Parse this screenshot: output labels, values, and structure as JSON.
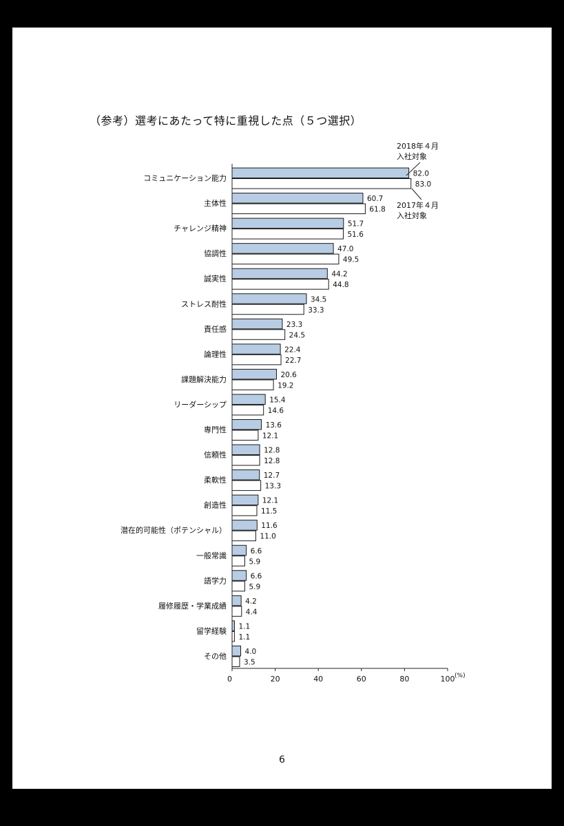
{
  "page": {
    "title": "（参考）選考にあたって特に重視した点（５つ選択）",
    "page_number": "6"
  },
  "chart_data": {
    "type": "bar",
    "orientation": "horizontal",
    "title": "（参考）選考にあたって特に重視した点（５つ選択）",
    "xlabel": "(%)",
    "xlim": [
      0,
      100
    ],
    "xticks": [
      0,
      20,
      40,
      60,
      80,
      100
    ],
    "grid": false,
    "categories": [
      "コミュニケーション能力",
      "主体性",
      "チャレンジ精神",
      "協調性",
      "誠実性",
      "ストレス耐性",
      "責任感",
      "論理性",
      "課題解決能力",
      "リーダーシップ",
      "専門性",
      "信頼性",
      "柔軟性",
      "創造性",
      "潜在的可能性（ポテンシャル）",
      "一般常識",
      "語学力",
      "履修履歴・学業成績",
      "留学経験",
      "その他"
    ],
    "series": [
      {
        "name": "2018年４月入社対象",
        "legend_lines": [
          "2018年４月",
          "入社対象"
        ],
        "color": "#b8cce4",
        "values": [
          82.0,
          60.7,
          51.7,
          47.0,
          44.2,
          34.5,
          23.3,
          22.4,
          20.6,
          15.4,
          13.6,
          12.8,
          12.7,
          12.1,
          11.6,
          6.6,
          6.6,
          4.2,
          1.1,
          4.0
        ],
        "labels": [
          "82.0",
          "60.7",
          "51.7",
          "47.0",
          "44.2",
          "34.5",
          "23.3",
          "22.4",
          "20.6",
          "15.4",
          "13.6",
          "12.8",
          "12.7",
          "12.1",
          "11.6",
          "6.6",
          "6.6",
          "4.2",
          "1.1",
          "4.0"
        ]
      },
      {
        "name": "2017年４月入社対象",
        "legend_lines": [
          "2017年４月",
          "入社対象"
        ],
        "color": "#ffffff",
        "values": [
          83.0,
          61.8,
          51.6,
          49.5,
          44.8,
          33.3,
          24.5,
          22.7,
          19.2,
          14.6,
          12.1,
          12.8,
          13.3,
          11.5,
          11.0,
          5.9,
          5.9,
          4.4,
          1.1,
          3.5
        ],
        "labels": [
          "83.0",
          "61.8",
          "51.6",
          "49.5",
          "44.8",
          "33.3",
          "24.5",
          "22.7",
          "19.2",
          "14.6",
          "12.1",
          "12.8",
          "13.3",
          "11.5",
          "11.0",
          "5.9",
          "5.9",
          "4.4",
          "1.1",
          "3.5"
        ]
      }
    ]
  }
}
